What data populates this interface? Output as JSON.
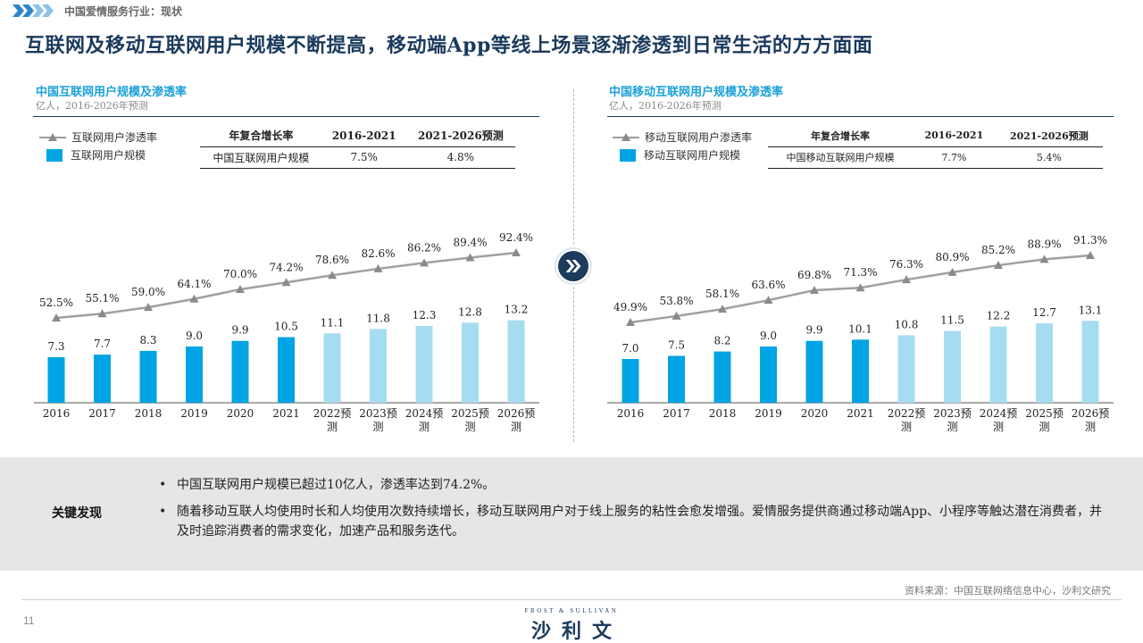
{
  "header": {
    "breadcrumb": "中国爱情服务行业：现状",
    "title": "互联网及移动互联网用户规模不断提高，移动端App等线上场景逐渐渗透到日常生活的方方面面"
  },
  "panels": [
    {
      "title": "中国互联网用户规模及渗透率",
      "subtitle": "亿人，2016-2026年预测",
      "legend_line": "互联网用户渗透率",
      "legend_bar": "互联网用户规模",
      "cagr_table": {
        "headers": [
          "年复合增长率",
          "2016-2021",
          "2021-2026预测"
        ],
        "row": [
          "中国互联网用户规模",
          "7.5%",
          "4.8%"
        ]
      }
    },
    {
      "title": "中国移动互联网用户规模及渗透率",
      "subtitle": "亿人，2016-2026年预测",
      "legend_line": "移动互联网用户渗透率",
      "legend_bar": "移动互联网用户规模",
      "cagr_table": {
        "headers": [
          "年复合增长率",
          "2016-2021",
          "2021-2026预测"
        ],
        "row": [
          "中国移动互联网用户规模",
          "7.7%",
          "5.4%"
        ]
      }
    }
  ],
  "chart_data": [
    {
      "type": "bar",
      "categories": [
        "2016",
        "2017",
        "2018",
        "2019",
        "2020",
        "2021",
        "2022预测",
        "2023预测",
        "2024预测",
        "2025预测",
        "2026预测"
      ],
      "series": [
        {
          "name": "互联网用户规模",
          "kind": "bar",
          "values": [
            7.3,
            7.7,
            8.3,
            9.0,
            9.9,
            10.5,
            11.1,
            11.8,
            12.3,
            12.8,
            13.2
          ],
          "labels": [
            "7.3",
            "7.7",
            "8.3",
            "9.0",
            "9.9",
            "10.5",
            "11.1",
            "11.8",
            "12.3",
            "12.8",
            "13.2"
          ]
        },
        {
          "name": "互联网用户渗透率",
          "kind": "line",
          "values": [
            52.5,
            55.1,
            59.0,
            64.1,
            70.0,
            74.2,
            78.6,
            82.6,
            86.2,
            89.4,
            92.4
          ],
          "labels": [
            "52.5%",
            "55.1%",
            "59.0%",
            "64.1%",
            "70.0%",
            "74.2%",
            "78.6%",
            "82.6%",
            "86.2%",
            "89.4%",
            "92.4%"
          ]
        }
      ],
      "forecast_start_index": 6,
      "colors": {
        "actual": "#00a4e4",
        "forecast": "#a6dcf0",
        "line": "#a0a0a0",
        "marker": "#8a8a8a"
      }
    },
    {
      "type": "bar",
      "categories": [
        "2016",
        "2017",
        "2018",
        "2019",
        "2020",
        "2021",
        "2022预测",
        "2023预测",
        "2024预测",
        "2025预测",
        "2026预测"
      ],
      "series": [
        {
          "name": "移动互联网用户规模",
          "kind": "bar",
          "values": [
            7.0,
            7.5,
            8.2,
            9.0,
            9.9,
            10.1,
            10.8,
            11.5,
            12.2,
            12.7,
            13.1
          ],
          "labels": [
            "7.0",
            "7.5",
            "8.2",
            "9.0",
            "9.9",
            "10.1",
            "10.8",
            "11.5",
            "12.2",
            "12.7",
            "13.1"
          ]
        },
        {
          "name": "移动互联网用户渗透率",
          "kind": "line",
          "values": [
            49.9,
            53.8,
            58.1,
            63.6,
            69.8,
            71.3,
            76.3,
            80.9,
            85.2,
            88.9,
            91.3
          ],
          "labels": [
            "49.9%",
            "53.8%",
            "58.1%",
            "63.6%",
            "69.8%",
            "71.3%",
            "76.3%",
            "80.9%",
            "85.2%",
            "88.9%",
            "91.3%"
          ]
        }
      ],
      "forecast_start_index": 6,
      "colors": {
        "actual": "#00a4e4",
        "forecast": "#a6dcf0",
        "line": "#a0a0a0",
        "marker": "#8a8a8a"
      }
    }
  ],
  "findings": {
    "label": "关键发现",
    "bullets": [
      "中国互联网用户规模已超过10亿人，渗透率达到74.2%。",
      "随着移动互联人均使用时长和人均使用次数持续增长，移动互联网用户对于线上服务的粘性会愈发增强。爱情服务提供商通过移动端App、小程序等触达潜在消费者，并及时追踪消费者的需求变化，加速产品和服务迭代。"
    ]
  },
  "footer": {
    "source": "资料来源：中国互联网络信息中心，沙利文研究",
    "page_number": "11",
    "logo_en": "FROST & SULLIVAN",
    "logo_cn": "沙利文"
  }
}
